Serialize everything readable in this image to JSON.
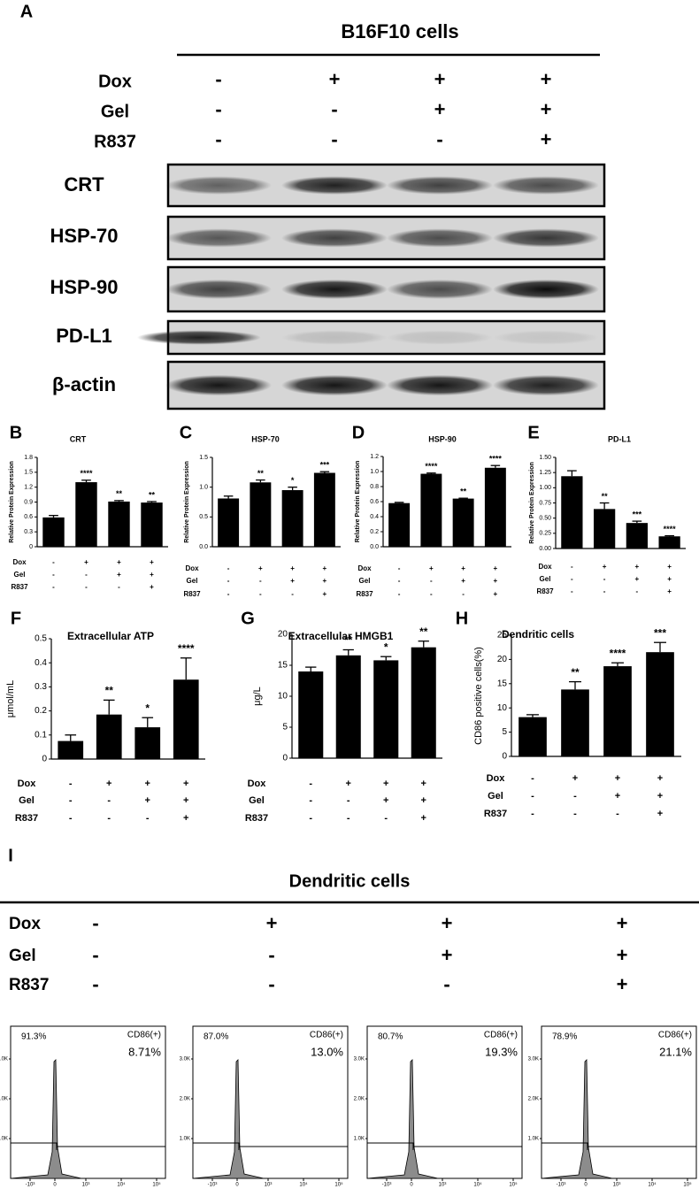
{
  "panel_a": {
    "letter": "A",
    "title": "B16F10 cells",
    "conditions": [
      {
        "label": "Dox",
        "signs": [
          "-",
          "+",
          "+",
          "+"
        ]
      },
      {
        "label": "Gel",
        "signs": [
          "-",
          "-",
          "+",
          "+"
        ]
      },
      {
        "label": "R837",
        "signs": [
          "-",
          "-",
          "-",
          "+"
        ]
      }
    ],
    "blots": [
      "CRT",
      "HSP-70",
      "HSP-90",
      "PD-L1",
      "β-actin"
    ]
  },
  "chart_data": [
    {
      "type": "bar",
      "letter": "B",
      "title": "CRT",
      "ylabel": "Relative Protein Expression",
      "color": "#000000",
      "values": [
        0.59,
        1.3,
        0.91,
        0.89
      ],
      "errors": [
        0.04,
        0.04,
        0.02,
        0.02
      ],
      "annotations": [
        null,
        "****",
        "**",
        "**"
      ],
      "ylim": [
        0,
        1.8
      ],
      "yticks": [
        0,
        0.3,
        0.6,
        0.9,
        1.2,
        1.5,
        1.8
      ],
      "conditions": [
        {
          "label": "Dox",
          "signs": [
            "-",
            "+",
            "+",
            "+"
          ]
        },
        {
          "label": "Gel",
          "signs": [
            "-",
            "-",
            "+",
            "+"
          ]
        },
        {
          "label": "R837",
          "signs": [
            "-",
            "-",
            "-",
            "+"
          ]
        }
      ]
    },
    {
      "type": "bar",
      "letter": "C",
      "title": "HSP-70",
      "ylabel": "Relative Protein Expression",
      "color": "#000000",
      "values": [
        0.81,
        1.08,
        0.95,
        1.24
      ],
      "errors": [
        0.04,
        0.04,
        0.05,
        0.02
      ],
      "annotations": [
        null,
        "**",
        "*",
        "***"
      ],
      "ylim": [
        0,
        1.5
      ],
      "yticks": [
        {
          "value": 0,
          "label": "0.0"
        },
        0.5,
        {
          "value": 1,
          "label": "1.0"
        },
        1.5
      ],
      "conditions": [
        {
          "label": "Dox",
          "signs": [
            "-",
            "+",
            "+",
            "+"
          ]
        },
        {
          "label": "Gel",
          "signs": [
            "-",
            "-",
            "+",
            "+"
          ]
        },
        {
          "label": "R837",
          "signs": [
            "-",
            "-",
            "-",
            "+"
          ]
        }
      ]
    },
    {
      "type": "bar",
      "letter": "D",
      "title": "HSP-90",
      "ylabel": "Relative Protein Expression",
      "color": "#000000",
      "values": [
        0.58,
        0.97,
        0.64,
        1.05
      ],
      "errors": [
        0.01,
        0.01,
        0.005,
        0.03
      ],
      "annotations": [
        null,
        "****",
        "**",
        "****"
      ],
      "ylim": [
        0,
        1.2
      ],
      "yticks": [
        {
          "value": 0,
          "label": "0.0"
        },
        0.2,
        0.4,
        0.6,
        0.8,
        {
          "value": 1,
          "label": "1.0"
        },
        1.2
      ],
      "conditions": [
        {
          "label": "Dox",
          "signs": [
            "-",
            "+",
            "+",
            "+"
          ]
        },
        {
          "label": "Gel",
          "signs": [
            "-",
            "-",
            "+",
            "+"
          ]
        },
        {
          "label": "R837",
          "signs": [
            "-",
            "-",
            "-",
            "+"
          ]
        }
      ]
    },
    {
      "type": "bar",
      "letter": "E",
      "title": "PD-L1",
      "ylabel": "Relative Protein Expression",
      "color": "#000000",
      "values": [
        1.19,
        0.65,
        0.42,
        0.2
      ],
      "errors": [
        0.09,
        0.1,
        0.03,
        0.01
      ],
      "annotations": [
        null,
        "**",
        "***",
        "****"
      ],
      "ylim": [
        0,
        1.5
      ],
      "yticks": [
        {
          "value": 0,
          "label": "0.00"
        },
        0.25,
        {
          "value": 0.5,
          "label": "0.50"
        },
        0.75,
        {
          "value": 1,
          "label": "1.00"
        },
        1.25,
        {
          "value": 1.5,
          "label": "1.50"
        }
      ],
      "conditions": [
        {
          "label": "Dox",
          "signs": [
            "-",
            "+",
            "+",
            "+"
          ]
        },
        {
          "label": "Gel",
          "signs": [
            "-",
            "-",
            "+",
            "+"
          ]
        },
        {
          "label": "R837",
          "signs": [
            "-",
            "-",
            "-",
            "+"
          ]
        }
      ]
    },
    {
      "type": "bar",
      "letter": "F",
      "title": "Extracellular ATP",
      "ylabel": "μmol/mL",
      "color": "#000000",
      "values": [
        0.075,
        0.185,
        0.132,
        0.33
      ],
      "errors": [
        0.025,
        0.06,
        0.04,
        0.09
      ],
      "annotations": [
        null,
        "**",
        "*",
        "****"
      ],
      "ylim": [
        0,
        0.5
      ],
      "yticks": [
        0,
        0.1,
        0.2,
        0.3,
        0.4,
        0.5
      ],
      "conditions": [
        {
          "label": "Dox",
          "signs": [
            "-",
            "+",
            "+",
            "+"
          ]
        },
        {
          "label": "Gel",
          "signs": [
            "-",
            "-",
            "+",
            "+"
          ]
        },
        {
          "label": "R837",
          "signs": [
            "-",
            "-",
            "-",
            "+"
          ]
        }
      ]
    },
    {
      "type": "bar",
      "letter": "G",
      "title": "Extracellular HMGB1",
      "ylabel": "μg/L",
      "color": "#000000",
      "values": [
        14,
        16.6,
        15.8,
        17.9
      ],
      "errors": [
        0.7,
        0.9,
        0.6,
        1
      ],
      "annotations": [
        null,
        "**",
        "*",
        "**"
      ],
      "ylim": [
        0,
        20
      ],
      "yticks": [
        0,
        5,
        10,
        15,
        20
      ],
      "conditions": [
        {
          "label": "Dox",
          "signs": [
            "-",
            "+",
            "+",
            "+"
          ]
        },
        {
          "label": "Gel",
          "signs": [
            "-",
            "-",
            "+",
            "+"
          ]
        },
        {
          "label": "R837",
          "signs": [
            "-",
            "-",
            "-",
            "+"
          ]
        }
      ]
    },
    {
      "type": "bar",
      "letter": "H",
      "title": "Dendritic cells",
      "ylabel": "CD86 positive cells(%)",
      "color": "#000000",
      "values": [
        8.1,
        13.8,
        18.6,
        21.5
      ],
      "errors": [
        0.5,
        1.6,
        0.7,
        2
      ],
      "annotations": [
        null,
        "**",
        "****",
        "***"
      ],
      "ylim": [
        0,
        25
      ],
      "yticks": [
        0,
        5,
        10,
        15,
        20,
        25
      ],
      "conditions": [
        {
          "label": "Dox",
          "signs": [
            "-",
            "+",
            "+",
            "+"
          ]
        },
        {
          "label": "Gel",
          "signs": [
            "-",
            "-",
            "+",
            "+"
          ]
        },
        {
          "label": "R837",
          "signs": [
            "-",
            "-",
            "-",
            "+"
          ]
        }
      ]
    }
  ],
  "panel_i": {
    "letter": "I",
    "title": "Dendritic cells",
    "conditions": [
      {
        "label": "Dox",
        "signs": [
          "-",
          "+",
          "+",
          "+"
        ]
      },
      {
        "label": "Gel",
        "signs": [
          "-",
          "-",
          "+",
          "+"
        ]
      },
      {
        "label": "R837",
        "signs": [
          "-",
          "-",
          "-",
          "+"
        ]
      }
    ],
    "plots": [
      {
        "negative": "91.3%",
        "gate": "CD86(+)",
        "positive": "8.71%"
      },
      {
        "negative": "87.0%",
        "gate": "CD86(+)",
        "positive": "13.0%"
      },
      {
        "negative": "80.7%",
        "gate": "CD86(+)",
        "positive": "19.3%"
      },
      {
        "negative": "78.9%",
        "gate": "CD86(+)",
        "positive": "21.1%"
      }
    ],
    "yticks": [
      "1.0K",
      "2.0K",
      "3.0K"
    ],
    "xticks": [
      "-10³",
      "0",
      "10³",
      "10⁴",
      "10⁵"
    ]
  }
}
